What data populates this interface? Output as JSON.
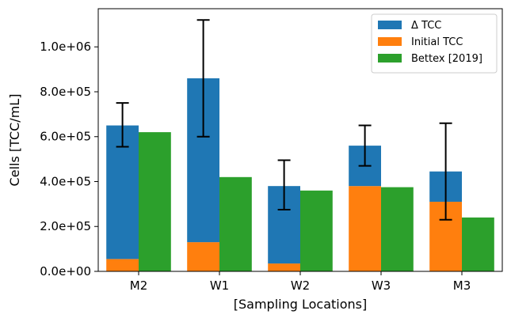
{
  "chart_data": {
    "type": "bar",
    "categories": [
      "M2",
      "W1",
      "W2",
      "W3",
      "M3"
    ],
    "xlabel": "[Sampling Locations]",
    "ylabel": "Cells [TCC/mL]",
    "ylim": [
      0,
      1170000
    ],
    "yticks": [
      0,
      200000,
      400000,
      600000,
      800000,
      1000000
    ],
    "ytick_labels": [
      "0.0e+00",
      "2.0e+05",
      "4.0e+05",
      "6.0e+05",
      "8.0e+05",
      "1.0e+06"
    ],
    "stacked_series": [
      {
        "name": "Initial TCC",
        "color": "#ff7f0e",
        "values": [
          55000,
          130000,
          35000,
          380000,
          310000
        ]
      },
      {
        "name": "Δ TCC",
        "color": "#1f77b4",
        "values": [
          595000,
          730000,
          345000,
          180000,
          135000
        ]
      }
    ],
    "stacked_totals": [
      650000,
      860000,
      380000,
      560000,
      445000
    ],
    "error_bars": {
      "lower": [
        555000,
        600000,
        275000,
        470000,
        230000
      ],
      "upper": [
        750000,
        1120000,
        495000,
        650000,
        660000
      ]
    },
    "comparison_series": {
      "name": "Bettex [2019]",
      "color": "#2ca02c",
      "values": [
        620000,
        420000,
        360000,
        375000,
        240000
      ]
    },
    "legend": {
      "position": "top-right",
      "entries": [
        {
          "label": "Δ TCC",
          "color": "#1f77b4"
        },
        {
          "label": "Initial TCC",
          "color": "#ff7f0e"
        },
        {
          "label": "Bettex [2019]",
          "color": "#2ca02c"
        }
      ]
    },
    "grid": false
  }
}
